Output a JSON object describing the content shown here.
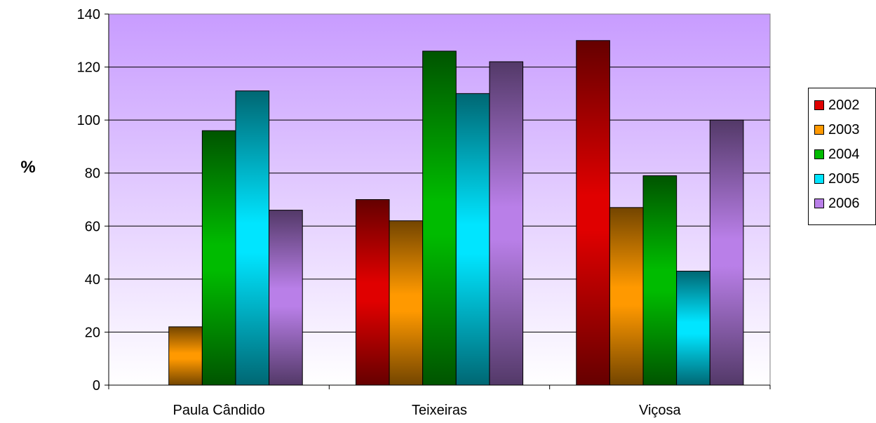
{
  "chart_data": {
    "type": "bar",
    "categories": [
      "Paula Cândido",
      "Teixeiras",
      "Viçosa"
    ],
    "series": [
      {
        "name": "2002",
        "values": [
          0,
          70,
          130
        ],
        "color": "#e00000"
      },
      {
        "name": "2003",
        "values": [
          22,
          62,
          67
        ],
        "color": "#ff9900"
      },
      {
        "name": "2004",
        "values": [
          96,
          126,
          79
        ],
        "color": "#00bb00"
      },
      {
        "name": "2005",
        "values": [
          111,
          110,
          43
        ],
        "color": "#00e5ff"
      },
      {
        "name": "2006",
        "values": [
          66,
          122,
          100
        ],
        "color": "#b97fe8"
      }
    ],
    "title": "",
    "xlabel": "",
    "ylabel": "%",
    "ylim": [
      0,
      140
    ],
    "yticks": [
      "0",
      "20",
      "40",
      "60",
      "80",
      "100",
      "120",
      "140"
    ],
    "grid": true,
    "legend_position": "right",
    "plot_background": "#c89cff"
  }
}
